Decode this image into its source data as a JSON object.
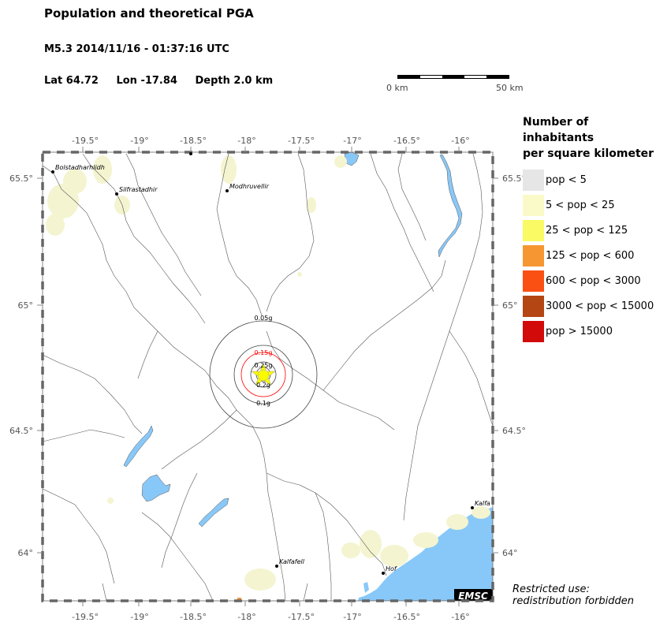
{
  "header": {
    "title": "Population and theoretical PGA",
    "event": "M5.3  2014/11/16 - 01:37:16 UTC",
    "lat": "Lat 64.72",
    "lon": "Lon -17.84",
    "depth": "Depth  2.0 km"
  },
  "scale": {
    "start_label": "0 km",
    "end_label": "50 km"
  },
  "axes": {
    "lon_ticks": [
      "-19.5°",
      "-19°",
      "-18.5°",
      "-18°",
      "-17.5°",
      "-17°",
      "-16.5°",
      "-16°"
    ],
    "lat_ticks": [
      "65.5°",
      "65°",
      "64.5°",
      "64°"
    ]
  },
  "places": [
    {
      "name": "Bolstadharhlidh"
    },
    {
      "name": "Silfrastadhir"
    },
    {
      "name": "Modhruvellir"
    },
    {
      "name": "Kalfafell"
    },
    {
      "name": "Hof"
    },
    {
      "name": "Kalfa"
    }
  ],
  "pga_labels": {
    "p005": "0.05g",
    "p015": "0.15g",
    "p025": "0.25g",
    "p02": "0.2g",
    "p01": "0.1g"
  },
  "legend": {
    "title_line1": "Number of inhabitants",
    "title_line2": "per square kilometer",
    "items": [
      {
        "label": "pop < 5",
        "color": "#e6e6e6"
      },
      {
        "label": "5 < pop < 25",
        "color": "#fafac8"
      },
      {
        "label": "25 < pop < 125",
        "color": "#fafa64"
      },
      {
        "label": "125 < pop < 600",
        "color": "#f59632"
      },
      {
        "label": "600 < pop < 3000",
        "color": "#fa5014"
      },
      {
        "label": "3000 < pop < 15000",
        "color": "#b44614"
      },
      {
        "label": "pop > 15000",
        "color": "#d20a0a"
      }
    ]
  },
  "colors": {
    "water": "#88c8f8",
    "river": "#555555",
    "frame": "#666666",
    "epicenter": "#fafa00",
    "pga_red": "#ff0000"
  },
  "logo": "EMSC",
  "restricted": {
    "line1": "Restricted use:",
    "line2": "redistribution forbidden"
  }
}
